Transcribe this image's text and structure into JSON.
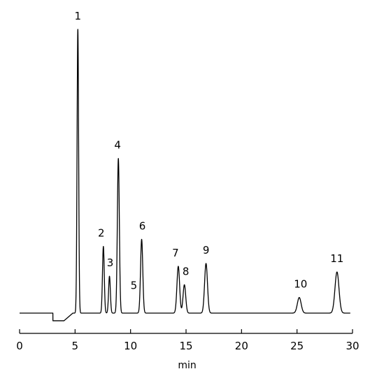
{
  "chart_data": {
    "type": "line",
    "title": "",
    "xlabel": "min",
    "ylabel": "",
    "xlim": [
      0,
      30
    ],
    "x_ticks": [
      0,
      5,
      10,
      15,
      20,
      25,
      30
    ],
    "x_tick_labels": [
      "0",
      "5",
      "10",
      "15",
      "20",
      "25",
      "30"
    ],
    "grid": false,
    "legend": "none",
    "line_color": "#000000",
    "baseline": 0,
    "ylim": [
      -0.03,
      1.03
    ],
    "baseline_dip": {
      "start": 3.0,
      "end": 4.0,
      "depth": -0.027
    },
    "peaks": [
      {
        "label": "1",
        "x": 5.25,
        "height": 1.0,
        "width": 0.07
      },
      {
        "label": "2",
        "x": 7.55,
        "height": 0.235,
        "width": 0.08
      },
      {
        "label": "3",
        "x": 8.1,
        "height": 0.13,
        "width": 0.08
      },
      {
        "label": "4",
        "x": 8.9,
        "height": 0.545,
        "width": 0.09
      },
      {
        "label": "5",
        "x": 10.3,
        "height": 0.0,
        "width": 0.1
      },
      {
        "label": "6",
        "x": 11.0,
        "height": 0.26,
        "width": 0.1
      },
      {
        "label": "7",
        "x": 14.3,
        "height": 0.165,
        "width": 0.12
      },
      {
        "label": "8",
        "x": 14.85,
        "height": 0.1,
        "width": 0.12
      },
      {
        "label": "9",
        "x": 16.8,
        "height": 0.175,
        "width": 0.13
      },
      {
        "label": "10",
        "x": 25.2,
        "height": 0.055,
        "width": 0.17
      },
      {
        "label": "11",
        "x": 28.6,
        "height": 0.145,
        "width": 0.18
      }
    ]
  }
}
